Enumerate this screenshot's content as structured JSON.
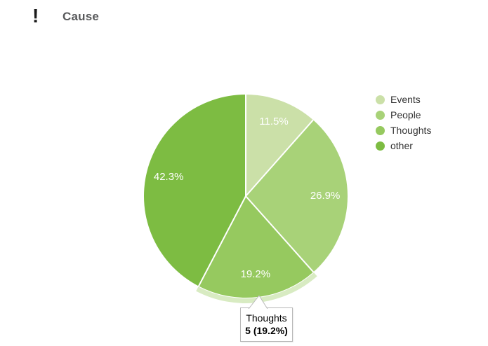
{
  "header": {
    "icon": "!",
    "title": "Cause"
  },
  "chart_data": {
    "type": "pie",
    "title": "Cause",
    "start_angle_deg": 0,
    "direction": "clockwise",
    "slices": [
      {
        "label": "Events",
        "percent": 11.5,
        "percent_label": "11.5%",
        "color": "#cbe0a8",
        "highlighted": false
      },
      {
        "label": "People",
        "percent": 26.9,
        "percent_label": "26.9%",
        "color": "#a8d278",
        "highlighted": false
      },
      {
        "label": "Thoughts",
        "percent": 19.2,
        "percent_label": "19.2%",
        "color": "#96c95f",
        "highlighted": true
      },
      {
        "label": "other",
        "percent": 42.3,
        "percent_label": "42.3%",
        "color": "#7dbc42",
        "highlighted": false
      }
    ],
    "slice_label_color": "#ffffff",
    "separator_color": "#ffffff",
    "highlight_ring_color": "#d8ebc2",
    "legend_position": "right",
    "legend_text_color": "#333333"
  },
  "tooltip": {
    "title": "Thoughts",
    "value": "5 (19.2%)"
  }
}
